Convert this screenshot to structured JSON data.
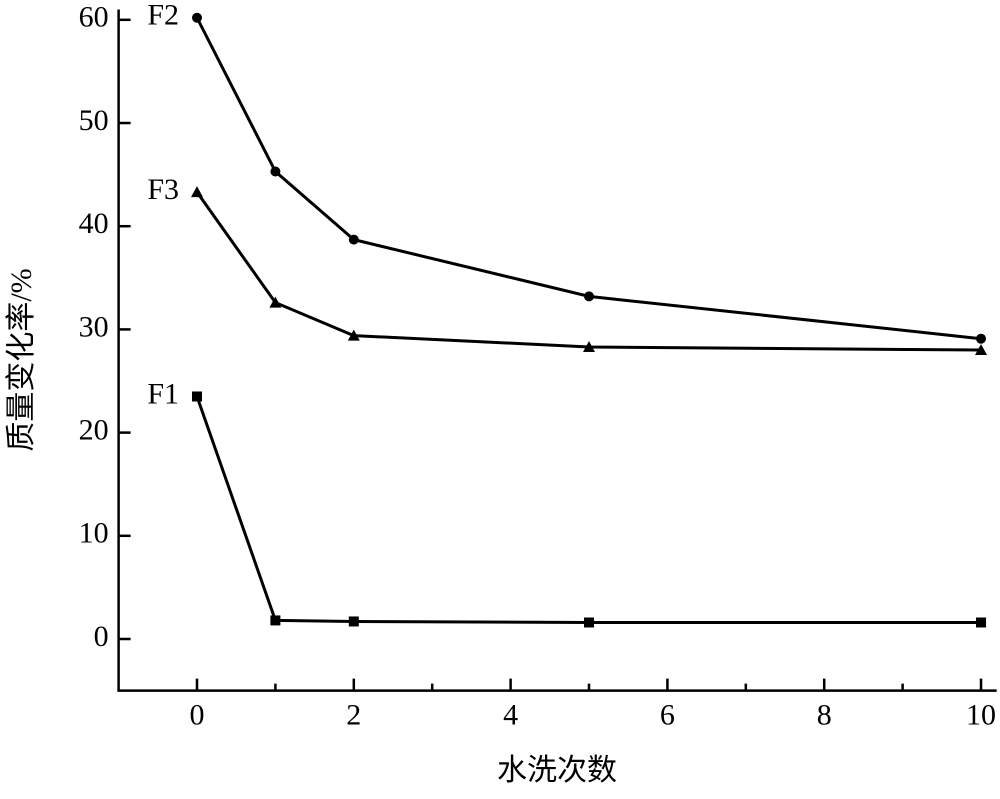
{
  "chart_data": {
    "type": "line",
    "x_label": "水洗次数",
    "y_label": "质量变化率/%",
    "x": [
      0,
      1,
      2,
      5,
      10
    ],
    "series": [
      {
        "name": "F1",
        "color": "#000000",
        "marker": "square",
        "values": [
          23.5,
          1.8,
          1.7,
          1.6,
          1.6
        ]
      },
      {
        "name": "F2",
        "color": "#000000",
        "marker": "circle",
        "values": [
          60.2,
          45.3,
          38.7,
          33.2,
          29.1
        ]
      },
      {
        "name": "F3",
        "color": "#000000",
        "marker": "triangle",
        "values": [
          43.3,
          32.6,
          29.4,
          28.3,
          28.0
        ]
      }
    ],
    "xlim": [
      -1,
      10.2
    ],
    "ylim": [
      -5,
      61
    ],
    "xticks": [
      0,
      2,
      4,
      6,
      8,
      10
    ],
    "xminorticks": [
      1,
      3,
      5,
      7,
      9
    ],
    "yticks": [
      0,
      10,
      20,
      30,
      40,
      50,
      60
    ]
  }
}
